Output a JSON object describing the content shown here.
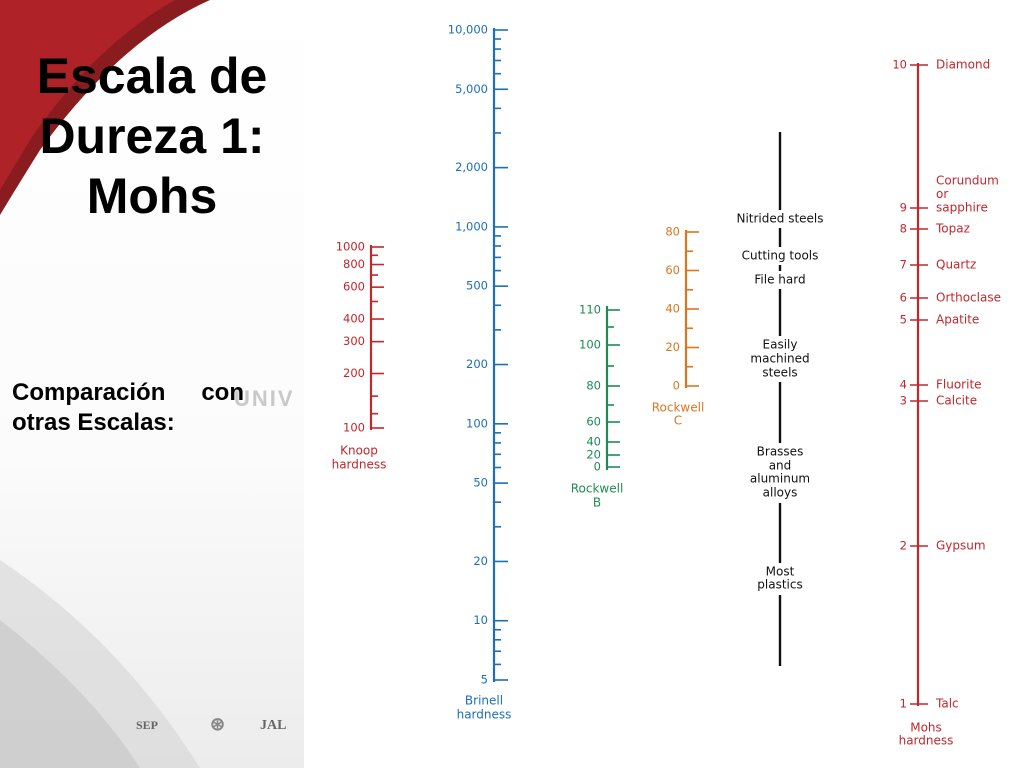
{
  "slide": {
    "title_lines": [
      "Escala de",
      "Dureza 1:",
      "Mohs"
    ],
    "subtitle": "Comparación con otras Escalas:",
    "watermark": "UNIV",
    "footer": {
      "left": "SEP",
      "right": "JAL"
    }
  },
  "chart_data": {
    "type": "nomogram",
    "colors": {
      "knoop": "#c0282d",
      "brinell": "#1d6fb8",
      "rockwell_b": "#1f8a54",
      "rockwell_c": "#d9761f",
      "materials": "#111111",
      "mohs": "#c0282d"
    },
    "scales": [
      {
        "id": "knoop",
        "label_lines": [
          "Knoop",
          "hardness"
        ],
        "ticks": [
          {
            "value": 1000,
            "label": "1000"
          },
          {
            "value": 800,
            "label": "800"
          },
          {
            "value": 600,
            "label": "600"
          },
          {
            "value": 400,
            "label": "400"
          },
          {
            "value": 300,
            "label": "300"
          },
          {
            "value": 200,
            "label": "200"
          },
          {
            "value": 100,
            "label": "100"
          }
        ]
      },
      {
        "id": "brinell",
        "label_lines": [
          "Brinell",
          "hardness"
        ],
        "ticks": [
          {
            "value": 10000,
            "label": "10,000"
          },
          {
            "value": 5000,
            "label": "5,000"
          },
          {
            "value": 2000,
            "label": "2,000"
          },
          {
            "value": 1000,
            "label": "1,000"
          },
          {
            "value": 500,
            "label": "500"
          },
          {
            "value": 200,
            "label": "200"
          },
          {
            "value": 100,
            "label": "100"
          },
          {
            "value": 50,
            "label": "50"
          },
          {
            "value": 20,
            "label": "20"
          },
          {
            "value": 10,
            "label": "10"
          },
          {
            "value": 5,
            "label": "5"
          }
        ]
      },
      {
        "id": "rockwell_b",
        "label_lines": [
          "Rockwell",
          "B"
        ],
        "ticks": [
          {
            "value": 110,
            "label": "110"
          },
          {
            "value": 100,
            "label": "100"
          },
          {
            "value": 80,
            "label": "80"
          },
          {
            "value": 60,
            "label": "60"
          },
          {
            "value": 40,
            "label": "40"
          },
          {
            "value": 20,
            "label": "20"
          },
          {
            "value": 0,
            "label": "0"
          }
        ]
      },
      {
        "id": "rockwell_c",
        "label_lines": [
          "Rockwell",
          "C"
        ],
        "ticks": [
          {
            "value": 80,
            "label": "80"
          },
          {
            "value": 60,
            "label": "60"
          },
          {
            "value": 40,
            "label": "40"
          },
          {
            "value": 20,
            "label": "20"
          },
          {
            "value": 0,
            "label": "0"
          }
        ]
      },
      {
        "id": "mohs",
        "label_lines": [
          "Mohs",
          "hardness"
        ],
        "ticks": [
          {
            "value": 10,
            "label": "10",
            "mineral_lines": [
              "Diamond"
            ]
          },
          {
            "value": 9,
            "label": "9",
            "mineral_lines": [
              "Corundum",
              "or",
              "sapphire"
            ]
          },
          {
            "value": 8,
            "label": "8",
            "mineral_lines": [
              "Topaz"
            ]
          },
          {
            "value": 7,
            "label": "7",
            "mineral_lines": [
              "Quartz"
            ]
          },
          {
            "value": 6,
            "label": "6",
            "mineral_lines": [
              "Orthoclase"
            ]
          },
          {
            "value": 5,
            "label": "5",
            "mineral_lines": [
              "Apatite"
            ]
          },
          {
            "value": 4,
            "label": "4",
            "mineral_lines": [
              "Fluorite"
            ]
          },
          {
            "value": 3,
            "label": "3",
            "mineral_lines": [
              "Calcite"
            ]
          },
          {
            "value": 2,
            "label": "2",
            "mineral_lines": [
              "Gypsum"
            ]
          },
          {
            "value": 1,
            "label": "1",
            "mineral_lines": [
              "Talc"
            ]
          }
        ]
      }
    ],
    "materials": [
      {
        "lines": [
          "Nitrided steels"
        ]
      },
      {
        "lines": [
          "Cutting tools"
        ]
      },
      {
        "lines": [
          "File hard"
        ]
      },
      {
        "lines": [
          "Easily",
          "machined",
          "steels"
        ]
      },
      {
        "lines": [
          "Brasses",
          "and",
          "aluminum",
          "alloys"
        ]
      },
      {
        "lines": [
          "Most",
          "plastics"
        ]
      }
    ]
  }
}
